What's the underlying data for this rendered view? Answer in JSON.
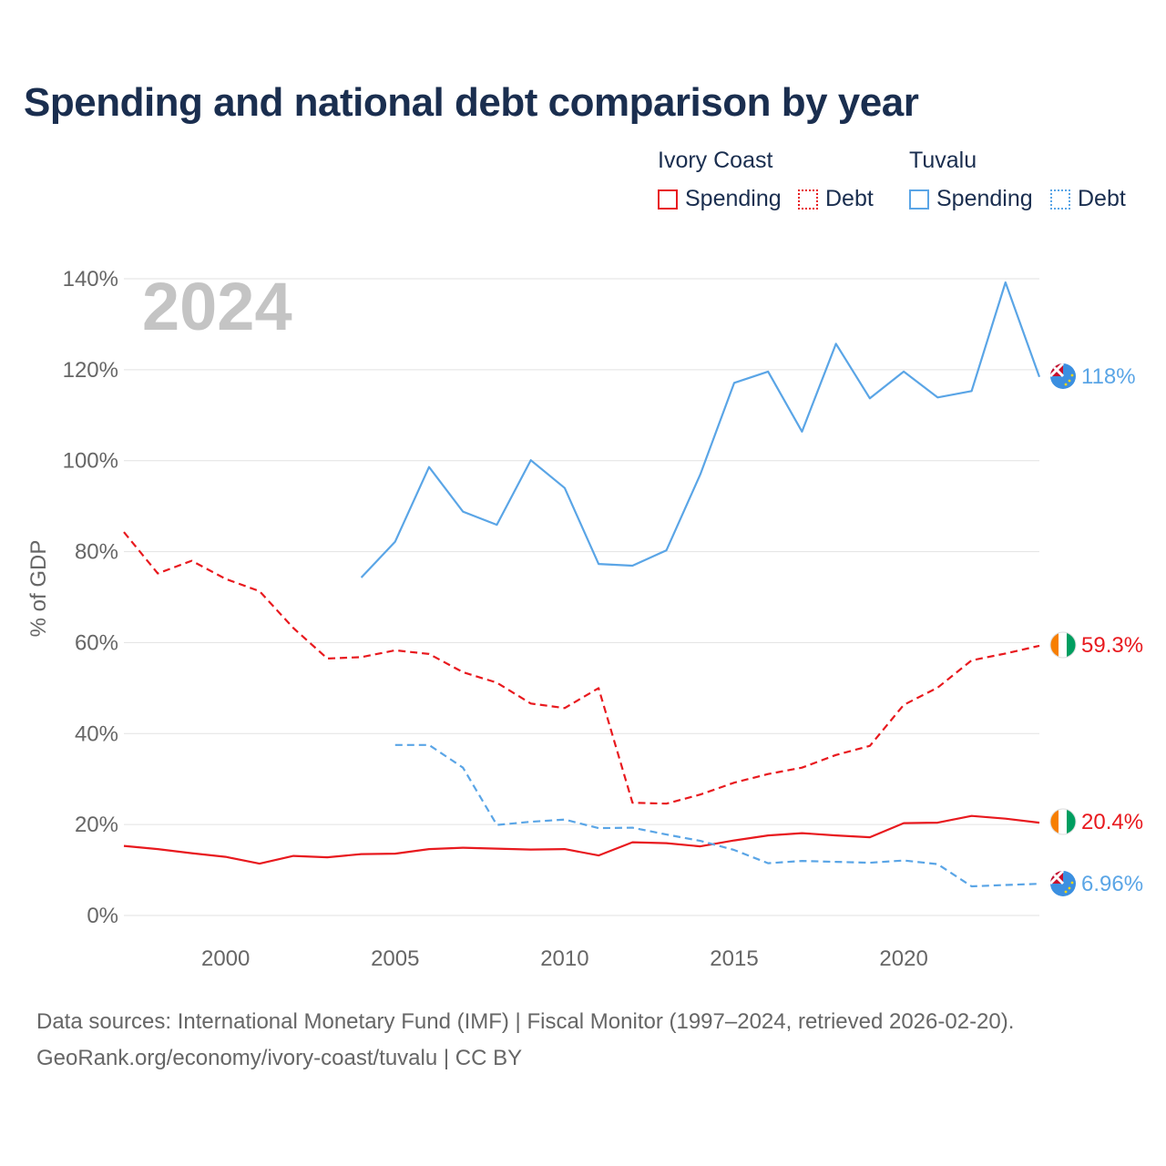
{
  "title": "Spending and national debt comparison by year",
  "legend": {
    "groups": [
      {
        "name": "Ivory Coast",
        "spending_label": "Spending",
        "debt_label": "Debt",
        "color": "#e8191e"
      },
      {
        "name": "Tuvalu",
        "spending_label": "Spending",
        "debt_label": "Debt",
        "color": "#5aa5e6"
      }
    ]
  },
  "year_watermark": "2024",
  "source_line1": "Data sources: International Monetary Fund (IMF) | Fiscal Monitor (1997–2024, retrieved 2026-02-20).",
  "source_line2": "GeoRank.org/economy/ivory-coast/tuvalu | CC BY",
  "chart_data": {
    "type": "line",
    "title": "Spending and national debt comparison by year",
    "xlabel": "",
    "ylabel": "% of GDP",
    "xlim": [
      1997,
      2024
    ],
    "ylim": [
      0,
      140
    ],
    "x_ticks": [
      2000,
      2005,
      2010,
      2015,
      2020
    ],
    "x_tick_labels": [
      "2000",
      "2005",
      "2010",
      "2015",
      "2020"
    ],
    "y_ticks": [
      0,
      20,
      40,
      60,
      80,
      100,
      120,
      140
    ],
    "y_tick_labels": [
      "0%",
      "20%",
      "40%",
      "60%",
      "80%",
      "100%",
      "120%",
      "140%"
    ],
    "grid": true,
    "series": [
      {
        "name": "Ivory Coast Spending",
        "country": "Ivory Coast",
        "metric": "Spending",
        "color": "#e8191e",
        "dash": "solid",
        "end_label": "20.4%",
        "x": [
          1997,
          1998,
          1999,
          2000,
          2001,
          2002,
          2003,
          2004,
          2005,
          2006,
          2007,
          2008,
          2009,
          2010,
          2011,
          2012,
          2013,
          2014,
          2015,
          2016,
          2017,
          2018,
          2019,
          2020,
          2021,
          2022,
          2023,
          2024
        ],
        "values": [
          15.3,
          14.6,
          13.7,
          12.9,
          11.4,
          13.1,
          12.8,
          13.5,
          13.6,
          14.6,
          14.9,
          14.7,
          14.5,
          14.6,
          13.2,
          16.1,
          15.9,
          15.2,
          16.5,
          17.6,
          18.1,
          17.6,
          17.2,
          20.3,
          20.4,
          21.9,
          21.3,
          20.4
        ]
      },
      {
        "name": "Ivory Coast Debt",
        "country": "Ivory Coast",
        "metric": "Debt",
        "color": "#e8191e",
        "dash": "dashed",
        "end_label": "59.3%",
        "x": [
          1997,
          1998,
          1999,
          2000,
          2001,
          2002,
          2003,
          2004,
          2005,
          2006,
          2007,
          2008,
          2009,
          2010,
          2011,
          2012,
          2013,
          2014,
          2015,
          2016,
          2017,
          2018,
          2019,
          2020,
          2021,
          2022,
          2023,
          2024
        ],
        "values": [
          84.3,
          75.2,
          78.0,
          74.0,
          71.3,
          63.2,
          56.5,
          56.8,
          58.3,
          57.5,
          53.5,
          51.2,
          46.6,
          45.6,
          50.0,
          24.8,
          24.6,
          26.6,
          29.2,
          31.1,
          32.5,
          35.3,
          37.3,
          46.3,
          50.1,
          56.1,
          57.6,
          59.3
        ]
      },
      {
        "name": "Tuvalu Spending",
        "country": "Tuvalu",
        "metric": "Spending",
        "color": "#5aa5e6",
        "dash": "solid",
        "end_label": "118%",
        "x": [
          2004,
          2005,
          2006,
          2007,
          2008,
          2009,
          2010,
          2011,
          2012,
          2013,
          2014,
          2015,
          2016,
          2017,
          2018,
          2019,
          2020,
          2021,
          2022,
          2023,
          2024
        ],
        "values": [
          74.3,
          82.2,
          98.6,
          88.8,
          85.9,
          100.1,
          94.0,
          77.3,
          76.9,
          80.3,
          97.0,
          117.1,
          119.6,
          106.4,
          125.7,
          113.7,
          119.6,
          113.9,
          115.3,
          139.2,
          118.4
        ]
      },
      {
        "name": "Tuvalu Debt",
        "country": "Tuvalu",
        "metric": "Debt",
        "color": "#5aa5e6",
        "dash": "dashed",
        "end_label": "6.96%",
        "x": [
          2005,
          2006,
          2007,
          2008,
          2009,
          2010,
          2011,
          2012,
          2013,
          2014,
          2015,
          2016,
          2017,
          2018,
          2019,
          2020,
          2021,
          2022,
          2023,
          2024
        ],
        "values": [
          37.5,
          37.5,
          32.5,
          19.9,
          20.6,
          21.1,
          19.2,
          19.3,
          17.8,
          16.4,
          14.4,
          11.5,
          12.0,
          11.8,
          11.6,
          12.1,
          11.3,
          6.4,
          6.7,
          6.96
        ]
      }
    ]
  }
}
